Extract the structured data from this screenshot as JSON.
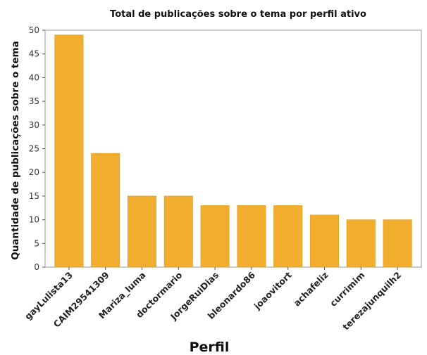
{
  "chart_data": {
    "type": "bar",
    "title": "Total de publicações sobre o tema por perfil ativo",
    "xlabel": "Perfil",
    "ylabel": "Quantidade de publicações sobre o tema",
    "categories": [
      "gayLulista13",
      "CAIM29541309",
      "Mariza_luma",
      "doctormario",
      "JorgeRuiDias",
      "bleonardo86",
      "joaovitort",
      "achafeliz",
      "currimim",
      "terezajunquilh2"
    ],
    "values": [
      49,
      24,
      15,
      15,
      13,
      13,
      13,
      11,
      10,
      10
    ],
    "ylim": [
      0,
      50
    ],
    "yticks": [
      0,
      5,
      10,
      15,
      20,
      25,
      30,
      35,
      40,
      45,
      50
    ],
    "grid": false,
    "colors": {
      "bar": "#F0AD2E",
      "bar_edge": "#E09A1C",
      "axes": "#999999"
    }
  }
}
